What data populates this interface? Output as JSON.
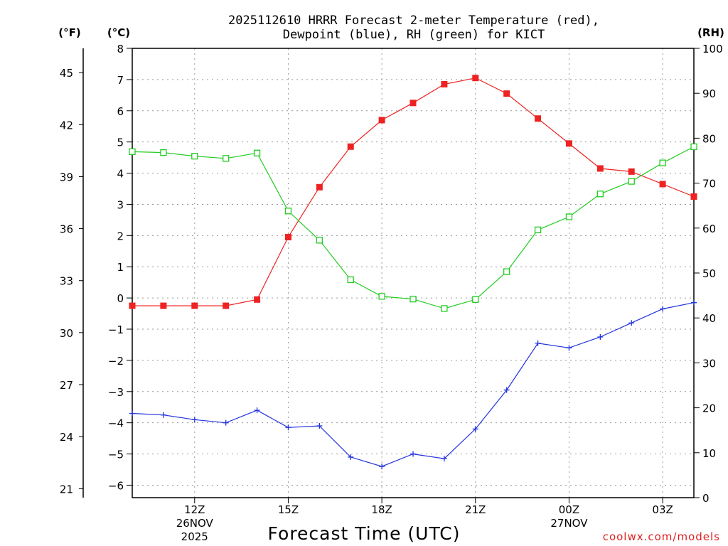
{
  "chart_data": {
    "type": "line",
    "title_line1": "2025112610 HRRR Forecast 2-meter Temperature (red),",
    "title_line2": "Dewpoint (blue), RH (green) for KICT",
    "xlabel": "Forecast Time (UTC)",
    "credit": "coolwx.com/models",
    "units": {
      "fahrenheit": "(°F)",
      "celsius": "(°C)",
      "rh": "(RH)"
    },
    "x": [
      10,
      11,
      12,
      13,
      14,
      15,
      16,
      17,
      18,
      19,
      20,
      21,
      22,
      23,
      24,
      25,
      26,
      27,
      28
    ],
    "xlim": [
      10,
      28
    ],
    "x_ticks": [
      {
        "x": 12,
        "label": "12Z",
        "date": "26NOV",
        "year": "2025"
      },
      {
        "x": 15,
        "label": "15Z"
      },
      {
        "x": 18,
        "label": "18Z"
      },
      {
        "x": 21,
        "label": "21Z"
      },
      {
        "x": 24,
        "label": "00Z",
        "date": "27NOV"
      },
      {
        "x": 27,
        "label": "03Z"
      }
    ],
    "y_celsius": {
      "range": [
        -6.4,
        8
      ],
      "ticks": [
        8,
        7,
        6,
        5,
        4,
        3,
        2,
        1,
        0,
        -1,
        -2,
        -3,
        -4,
        -5,
        -6
      ]
    },
    "y_fahrenheit": {
      "ticks": [
        45,
        42,
        39,
        36,
        33,
        30,
        27,
        24,
        21
      ]
    },
    "y_rh": {
      "range": [
        0,
        100
      ],
      "ticks": [
        100,
        90,
        80,
        70,
        60,
        50,
        40,
        30,
        20,
        10,
        0
      ]
    },
    "series": [
      {
        "name": "2-meter Temperature",
        "axis": "celsius",
        "color": "#ee2222",
        "marker": "filled-square",
        "values": [
          -0.25,
          -0.25,
          -0.25,
          -0.25,
          -0.05,
          1.95,
          3.55,
          4.85,
          5.7,
          6.25,
          6.85,
          7.05,
          6.55,
          5.75,
          4.95,
          4.15,
          4.05,
          3.65,
          3.25
        ]
      },
      {
        "name": "Dewpoint",
        "axis": "celsius",
        "color": "#2233dd",
        "marker": "plus",
        "values": [
          -3.7,
          -3.75,
          -3.9,
          -4.0,
          -3.6,
          -4.15,
          -4.1,
          -5.1,
          -5.4,
          -5.0,
          -5.15,
          -4.2,
          -2.95,
          -1.45,
          -1.6,
          -1.25,
          -0.8,
          -0.35,
          -0.15
        ]
      },
      {
        "name": "RH",
        "axis": "rh",
        "color": "#22cc22",
        "marker": "open-square",
        "values": [
          77,
          76.8,
          76,
          75.5,
          76.7,
          63.8,
          57.3,
          48.5,
          44.8,
          44.2,
          42.1,
          44.1,
          50.3,
          59.6,
          62.5,
          67.6,
          70.4,
          74.5,
          78.1
        ]
      }
    ]
  }
}
